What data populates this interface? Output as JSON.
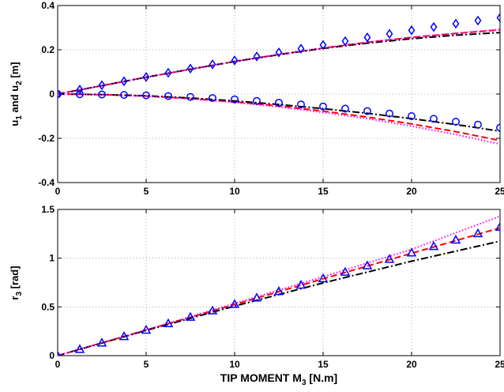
{
  "chart_data": [
    {
      "type": "line",
      "xlabel": "",
      "ylabel": "u1 and u2 [m]",
      "ylabel_parts": {
        "a": "u",
        "a_sub": "1",
        "mid": " and u",
        "b_sub": "2",
        "unit": " [m]"
      },
      "xlim": [
        0,
        25
      ],
      "ylim": [
        -0.4,
        0.4
      ],
      "xticks": [
        0,
        5,
        10,
        15,
        20,
        25
      ],
      "yticks": [
        -0.4,
        -0.2,
        0,
        0.2,
        0.4
      ],
      "xtick_labels": [
        "0",
        "5",
        "10",
        "15",
        "20",
        "25"
      ],
      "ytick_labels": [
        "-0.4",
        "-0.2",
        "0",
        "0.2",
        "0.4"
      ],
      "grid": true,
      "series": [
        {
          "style": "blue-diamond-markers",
          "color": "#0000ff",
          "x": [
            0,
            1.25,
            2.5,
            3.75,
            5,
            6.25,
            7.5,
            8.75,
            10,
            11.25,
            12.5,
            13.75,
            15,
            16.25,
            17.5,
            18.75,
            20,
            21.25,
            22.5,
            23.75,
            25
          ],
          "y": [
            0,
            0.02,
            0.04,
            0.058,
            0.077,
            0.096,
            0.115,
            0.134,
            0.152,
            0.17,
            0.188,
            0.205,
            0.222,
            0.239,
            0.256,
            0.272,
            0.288,
            0.303,
            0.318,
            0.332,
            0.345
          ]
        },
        {
          "style": "red-dashed",
          "color": "#ff0000",
          "x": [
            0,
            2.5,
            5,
            7.5,
            10,
            12.5,
            15,
            17.5,
            20,
            22.5,
            25
          ],
          "y": [
            0,
            0.038,
            0.076,
            0.112,
            0.147,
            0.179,
            0.208,
            0.234,
            0.256,
            0.274,
            0.29
          ]
        },
        {
          "style": "black-dashdot",
          "color": "#000000",
          "x": [
            0,
            2.5,
            5,
            7.5,
            10,
            12.5,
            15,
            17.5,
            20,
            22.5,
            25
          ],
          "y": [
            0,
            0.038,
            0.076,
            0.112,
            0.147,
            0.178,
            0.206,
            0.23,
            0.25,
            0.266,
            0.278
          ]
        },
        {
          "style": "magenta-dotted",
          "color": "#ff00ff",
          "x": [
            0,
            2.5,
            5,
            7.5,
            10,
            12.5,
            15,
            17.5,
            20,
            22.5,
            25
          ],
          "y": [
            0,
            0.038,
            0.076,
            0.112,
            0.147,
            0.179,
            0.208,
            0.234,
            0.256,
            0.275,
            0.292
          ]
        },
        {
          "style": "blue-circle-markers",
          "color": "#0000ff",
          "x": [
            0,
            1.25,
            2.5,
            3.75,
            5,
            6.25,
            7.5,
            8.75,
            10,
            11.25,
            12.5,
            13.75,
            15,
            16.25,
            17.5,
            18.75,
            20,
            21.25,
            22.5,
            23.75,
            25
          ],
          "y": [
            0,
            -0.001,
            -0.002,
            -0.004,
            -0.006,
            -0.009,
            -0.013,
            -0.018,
            -0.024,
            -0.031,
            -0.039,
            -0.047,
            -0.056,
            -0.066,
            -0.077,
            -0.088,
            -0.1,
            -0.112,
            -0.125,
            -0.138,
            -0.152
          ]
        },
        {
          "style": "red-dashed",
          "color": "#ff0000",
          "x": [
            0,
            2.5,
            5,
            7.5,
            10,
            12.5,
            15,
            17.5,
            20,
            22.5,
            25
          ],
          "y": [
            0,
            -0.003,
            -0.009,
            -0.02,
            -0.035,
            -0.054,
            -0.077,
            -0.104,
            -0.135,
            -0.17,
            -0.21
          ]
        },
        {
          "style": "black-dashdot",
          "color": "#000000",
          "x": [
            0,
            2.5,
            5,
            7.5,
            10,
            12.5,
            15,
            17.5,
            20,
            22.5,
            25
          ],
          "y": [
            0,
            -0.002,
            -0.008,
            -0.018,
            -0.031,
            -0.047,
            -0.066,
            -0.087,
            -0.111,
            -0.138,
            -0.168
          ]
        },
        {
          "style": "magenta-dotted",
          "color": "#ff00ff",
          "x": [
            0,
            2.5,
            5,
            7.5,
            10,
            12.5,
            15,
            17.5,
            20,
            22.5,
            25
          ],
          "y": [
            0,
            -0.003,
            -0.01,
            -0.022,
            -0.038,
            -0.058,
            -0.083,
            -0.111,
            -0.145,
            -0.183,
            -0.226
          ]
        }
      ]
    },
    {
      "type": "line",
      "xlabel": "TIP MOMENT M3 [N.m]",
      "xlabel_parts": {
        "a": "TIP MOMENT M",
        "a_sub": "3",
        "unit": " [N.m]"
      },
      "ylabel": "r3 [rad]",
      "ylabel_parts": {
        "a": "r",
        "a_sub": "3",
        "unit": " [rad]"
      },
      "xlim": [
        0,
        25
      ],
      "ylim": [
        0,
        1.5
      ],
      "xticks": [
        0,
        5,
        10,
        15,
        20,
        25
      ],
      "yticks": [
        0,
        0.5,
        1,
        1.5
      ],
      "xtick_labels": [
        "0",
        "5",
        "10",
        "15",
        "20",
        "25"
      ],
      "ytick_labels": [
        "0",
        "0.5",
        "1",
        "1.5"
      ],
      "grid": true,
      "series": [
        {
          "style": "blue-triangle-markers",
          "color": "#0000ff",
          "x": [
            0,
            1.25,
            2.5,
            3.75,
            5,
            6.25,
            7.5,
            8.75,
            10,
            11.25,
            12.5,
            13.75,
            15,
            16.25,
            17.5,
            18.75,
            20,
            21.25,
            22.5,
            23.75,
            25
          ],
          "y": [
            0,
            0.066,
            0.132,
            0.198,
            0.264,
            0.33,
            0.396,
            0.462,
            0.528,
            0.594,
            0.66,
            0.726,
            0.792,
            0.858,
            0.924,
            0.99,
            1.056,
            1.122,
            1.188,
            1.254,
            1.32
          ]
        },
        {
          "style": "red-dashed",
          "color": "#ff0000",
          "x": [
            0,
            5,
            10,
            15,
            20,
            25
          ],
          "y": [
            0,
            0.262,
            0.525,
            0.788,
            1.05,
            1.31
          ]
        },
        {
          "style": "black-dashdot",
          "color": "#000000",
          "x": [
            0,
            5,
            10,
            15,
            20,
            25
          ],
          "y": [
            0,
            0.259,
            0.508,
            0.746,
            0.969,
            1.175
          ]
        },
        {
          "style": "magenta-dotted",
          "color": "#ff00ff",
          "x": [
            0,
            5,
            10,
            15,
            20,
            25
          ],
          "y": [
            0,
            0.265,
            0.535,
            0.81,
            1.09,
            1.43
          ]
        }
      ]
    }
  ]
}
